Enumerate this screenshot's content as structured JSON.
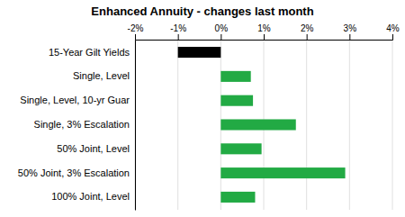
{
  "chart_data": {
    "type": "bar",
    "orientation": "horizontal",
    "title": "Enhanced Annuity - changes last month",
    "categories": [
      "15-Year Gilt Yields",
      "Single, Level",
      "Single, Level, 10-yr Guar",
      "Single, 3% Escalation",
      "50% Joint, Level",
      "50% Joint, 3% Escalation",
      "100% Joint, Level"
    ],
    "values": [
      -1.0,
      0.7,
      0.75,
      1.75,
      0.95,
      2.9,
      0.8
    ],
    "colors": [
      "#000000",
      "#22aa44",
      "#22aa44",
      "#22aa44",
      "#22aa44",
      "#22aa44",
      "#22aa44"
    ],
    "xlim": [
      -2,
      4
    ],
    "xticks": [
      {
        "value": -2,
        "label": "-2%"
      },
      {
        "value": -1,
        "label": "-1%"
      },
      {
        "value": 0,
        "label": "0%"
      },
      {
        "value": 1,
        "label": "1%"
      },
      {
        "value": 2,
        "label": "2%"
      },
      {
        "value": 3,
        "label": "3%"
      },
      {
        "value": 4,
        "label": "4%"
      }
    ],
    "grid": true
  }
}
